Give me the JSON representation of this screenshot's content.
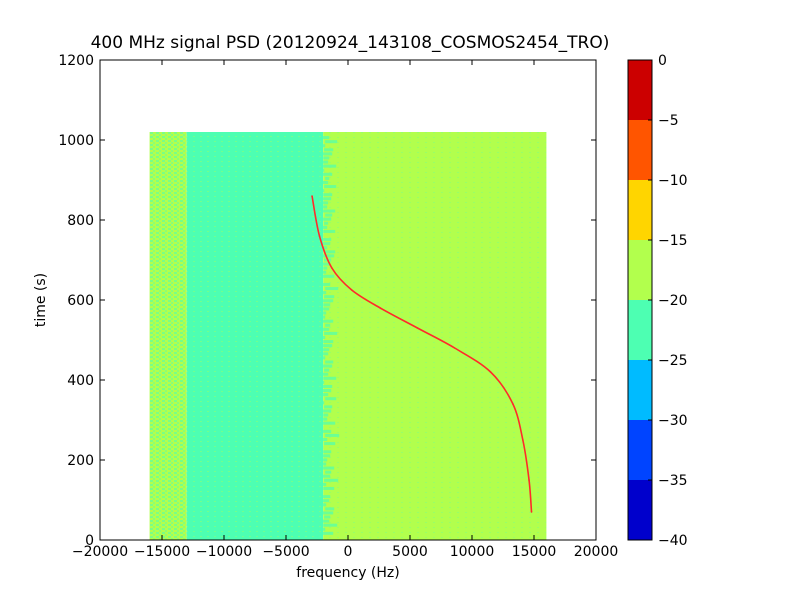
{
  "chart_data": {
    "type": "heatmap",
    "title": "400 MHz signal PSD (20120924_143108_COSMOS2454_TRO)",
    "xlabel": "frequency (Hz)",
    "ylabel": "time (s)",
    "xlim": [
      -20000,
      20000
    ],
    "ylim": [
      0,
      1200
    ],
    "x_ticks": [
      -20000,
      -15000,
      -10000,
      -5000,
      0,
      5000,
      10000,
      15000,
      20000
    ],
    "y_ticks": [
      0,
      200,
      400,
      600,
      800,
      1000,
      1200
    ],
    "x_tick_labels": [
      "−20000",
      "−15000",
      "−10000",
      "−5000",
      "0",
      "5000",
      "10000",
      "15000",
      "20000"
    ],
    "y_tick_labels": [
      "0",
      "200",
      "400",
      "600",
      "800",
      "1000",
      "1200"
    ],
    "data_extent": {
      "x": [
        -16000,
        16000
      ],
      "y": [
        0,
        1020
      ]
    },
    "colorbar": {
      "range": [
        -40,
        0
      ],
      "ticks": [
        0,
        -5,
        -10,
        -15,
        -20,
        -25,
        -30,
        -35,
        -40
      ],
      "tick_labels": [
        "0",
        "−5",
        "−10",
        "−15",
        "−20",
        "−25",
        "−30",
        "−35",
        "−40"
      ],
      "levels": [
        {
          "from": -40,
          "to": -35,
          "color": "#0000cc"
        },
        {
          "from": -35,
          "to": -30,
          "color": "#0044ff"
        },
        {
          "from": -30,
          "to": -25,
          "color": "#00bbff"
        },
        {
          "from": -25,
          "to": -20,
          "color": "#4dffb2"
        },
        {
          "from": -20,
          "to": -15,
          "color": "#b2ff4d"
        },
        {
          "from": -15,
          "to": -10,
          "color": "#ffd500"
        },
        {
          "from": -10,
          "to": -5,
          "color": "#ff5500"
        },
        {
          "from": -5,
          "to": 0,
          "color": "#cc0000"
        }
      ]
    },
    "background_regions": [
      {
        "x": [
          -16000,
          -13000
        ],
        "level": "mixed",
        "description_color": "#b2ff4d"
      },
      {
        "x": [
          -13000,
          -2000
        ],
        "level": [
          -25,
          -20
        ],
        "color": "#4dffb2"
      },
      {
        "x": [
          -2000,
          16000
        ],
        "level": [
          -20,
          -15
        ],
        "color": "#b2ff4d"
      }
    ],
    "series": [
      {
        "color": "#ff2a2a",
        "points": [
          {
            "x": 14800,
            "y": 70
          },
          {
            "x": 14600,
            "y": 150
          },
          {
            "x": 14100,
            "y": 250
          },
          {
            "x": 13300,
            "y": 340
          },
          {
            "x": 11500,
            "y": 420
          },
          {
            "x": 8600,
            "y": 480
          },
          {
            "x": 5600,
            "y": 530
          },
          {
            "x": 2600,
            "y": 580
          },
          {
            "x": 300,
            "y": 625
          },
          {
            "x": -1300,
            "y": 680
          },
          {
            "x": -2300,
            "y": 760
          },
          {
            "x": -2900,
            "y": 860
          }
        ]
      }
    ]
  }
}
